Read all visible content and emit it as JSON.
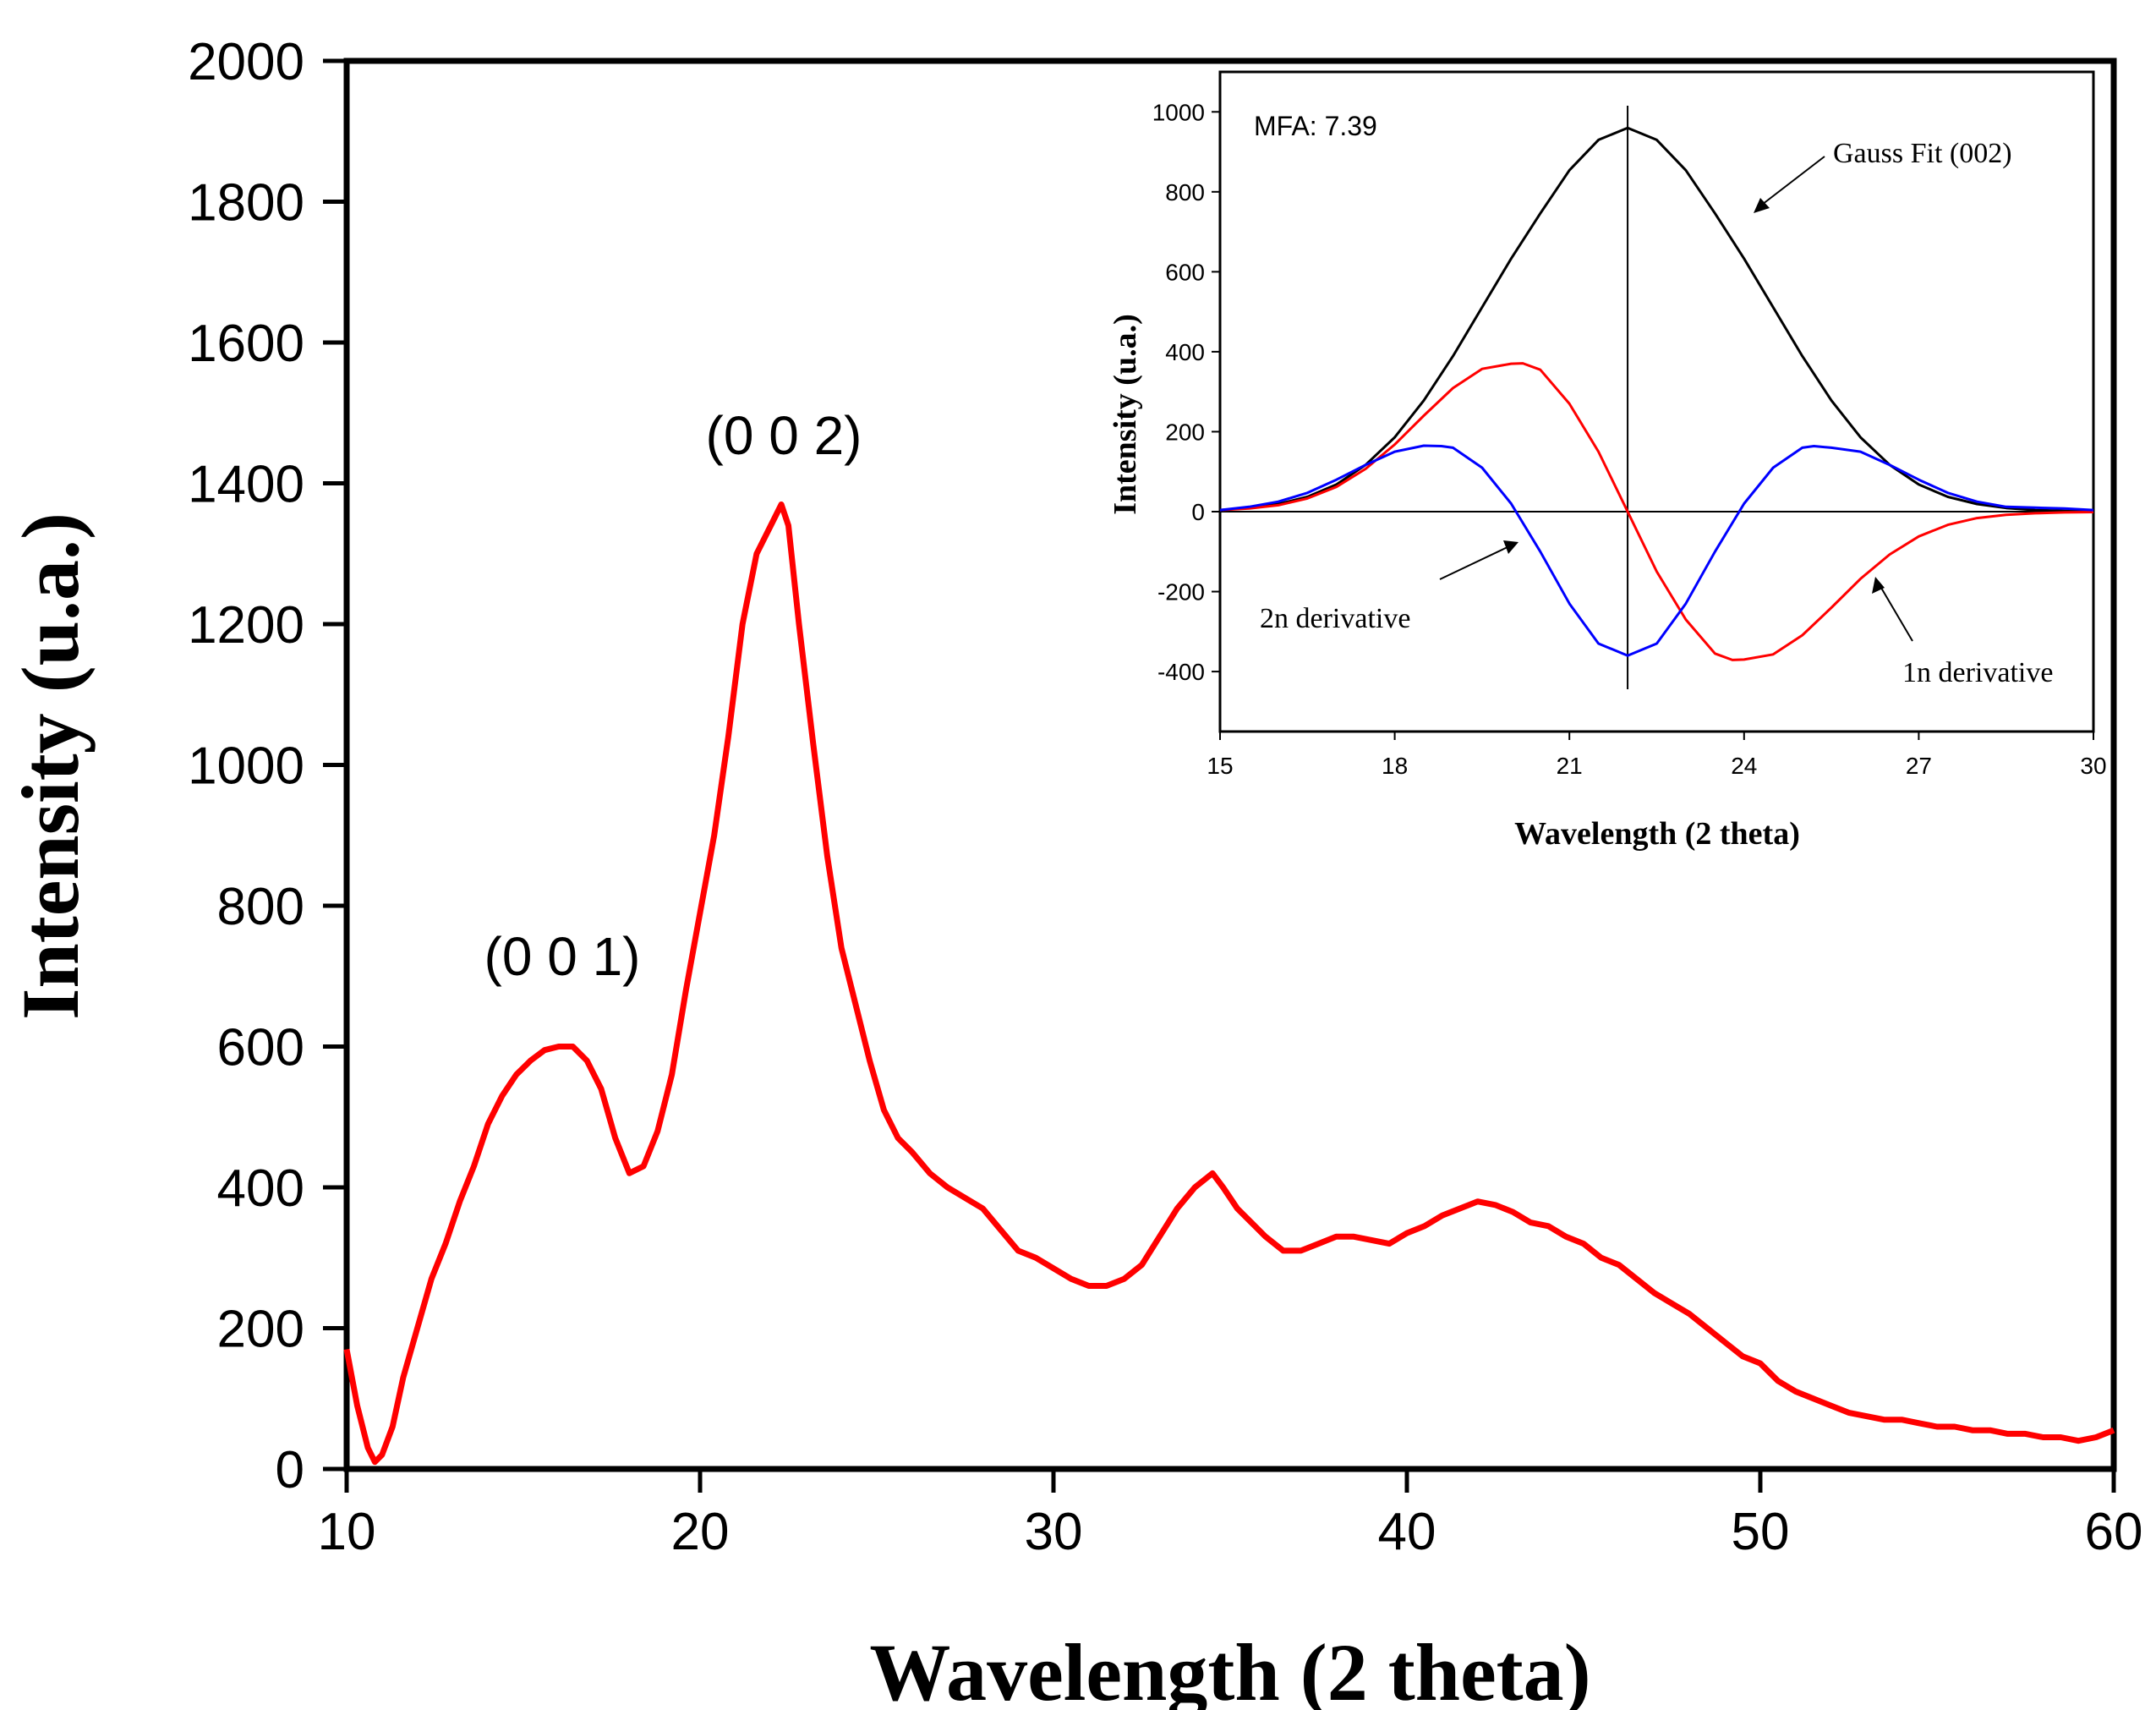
{
  "chart_data": [
    {
      "type": "line",
      "xlabel": "Wavelength (2 theta)",
      "ylabel": "Intensity (u.a.)",
      "xlim": [
        10,
        60
      ],
      "ylim": [
        0,
        2000
      ],
      "xticks": [
        10,
        20,
        30,
        40,
        50,
        60
      ],
      "yticks": [
        0,
        200,
        400,
        600,
        800,
        1000,
        1200,
        1400,
        1600,
        1800,
        2000
      ],
      "grid": false,
      "annotations": [
        {
          "text": "(0 0 1)",
          "x": 16,
          "y": 690
        },
        {
          "text": "(0 0 2)",
          "x": 22.3,
          "y": 1440
        }
      ],
      "series": [
        {
          "color": "#ff0000",
          "x": [
            10,
            10.3,
            10.6,
            10.8,
            11,
            11.3,
            11.6,
            12,
            12.4,
            12.8,
            13.2,
            13.6,
            14,
            14.4,
            14.8,
            15.2,
            15.6,
            16,
            16.4,
            16.8,
            17.2,
            17.6,
            18,
            18.4,
            18.8,
            19.2,
            19.6,
            20,
            20.4,
            20.8,
            21.2,
            21.6,
            22,
            22.3,
            22.5,
            22.8,
            23.2,
            23.6,
            24,
            24.4,
            24.8,
            25.2,
            25.6,
            26,
            26.5,
            27,
            27.5,
            28,
            28.5,
            29,
            29.5,
            30,
            30.5,
            31,
            31.5,
            32,
            32.5,
            33,
            33.5,
            34,
            34.5,
            34.8,
            35.2,
            35.6,
            36,
            36.5,
            37,
            37.5,
            38,
            38.5,
            39,
            39.5,
            40,
            40.5,
            41,
            41.5,
            42,
            42.5,
            43,
            43.5,
            44,
            44.5,
            45,
            45.5,
            46,
            46.5,
            47,
            47.5,
            48,
            48.5,
            49,
            49.5,
            50,
            50.5,
            51,
            51.5,
            52,
            52.5,
            53,
            53.5,
            54,
            54.5,
            55,
            55.5,
            56,
            56.5,
            57,
            57.5,
            58,
            58.5,
            59,
            59.5,
            60
          ],
          "y": [
            170,
            90,
            30,
            10,
            20,
            60,
            130,
            200,
            270,
            320,
            380,
            430,
            490,
            530,
            560,
            580,
            595,
            600,
            600,
            580,
            540,
            470,
            420,
            430,
            480,
            560,
            680,
            790,
            900,
            1040,
            1200,
            1300,
            1340,
            1370,
            1340,
            1200,
            1030,
            870,
            740,
            660,
            580,
            510,
            470,
            450,
            420,
            400,
            385,
            370,
            340,
            310,
            300,
            285,
            270,
            260,
            260,
            270,
            290,
            330,
            370,
            400,
            420,
            400,
            370,
            350,
            330,
            310,
            310,
            320,
            330,
            330,
            325,
            320,
            335,
            345,
            360,
            370,
            380,
            375,
            365,
            350,
            345,
            330,
            320,
            300,
            290,
            270,
            250,
            235,
            220,
            200,
            180,
            160,
            150,
            125,
            110,
            100,
            90,
            80,
            75,
            70,
            70,
            65,
            60,
            60,
            55,
            55,
            50,
            50,
            45,
            45,
            40,
            45,
            55
          ]
        }
      ]
    },
    {
      "type": "line",
      "xlabel": "Wavelength (2 theta)",
      "ylabel": "Intensity (u.a.)",
      "xlim": [
        15,
        30
      ],
      "ylim": [
        -550,
        1100
      ],
      "xticks": [
        15,
        18,
        21,
        24,
        27,
        30
      ],
      "yticks": [
        -400,
        -200,
        0,
        200,
        400,
        600,
        800,
        1000
      ],
      "grid": false,
      "reference_lines": {
        "x": 22,
        "y": 0
      },
      "annotations": [
        {
          "text": "MFA: 7.39"
        },
        {
          "text": "Gauss Fit (002)"
        },
        {
          "text": "2n derivative"
        },
        {
          "text": "1n derivative"
        }
      ],
      "series": [
        {
          "color": "#000000",
          "x": [
            15,
            15.5,
            16,
            16.5,
            17,
            17.5,
            18,
            18.5,
            19,
            19.5,
            20,
            20.5,
            21,
            21.5,
            22,
            22.5,
            23,
            23.5,
            24,
            24.5,
            25,
            25.5,
            26,
            26.5,
            27,
            27.5,
            28,
            28.5,
            29,
            29.5,
            30
          ],
          "y": [
            4,
            9,
            19,
            37,
            68,
            117,
            186,
            278,
            389,
            511,
            633,
            746,
            854,
            930,
            960,
            930,
            854,
            746,
            633,
            511,
            389,
            278,
            186,
            117,
            68,
            37,
            19,
            9,
            4,
            2,
            1
          ]
        },
        {
          "color": "#ff0000",
          "x": [
            15,
            15.5,
            16,
            16.5,
            17,
            17.5,
            18,
            18.5,
            19,
            19.5,
            20,
            20.2,
            20.5,
            21,
            21.5,
            22,
            22.5,
            23,
            23.5,
            23.8,
            24,
            24.5,
            25,
            25.5,
            26,
            26.5,
            27,
            27.5,
            28,
            28.5,
            29,
            29.5,
            30
          ],
          "y": [
            4,
            8,
            16,
            33,
            62,
            107,
            168,
            240,
            309,
            357,
            370,
            371,
            355,
            270,
            150,
            0,
            -150,
            -270,
            -355,
            -371,
            -370,
            -357,
            -309,
            -240,
            -168,
            -107,
            -62,
            -33,
            -16,
            -8,
            -4,
            -2,
            -1
          ]
        },
        {
          "color": "#0000ff",
          "x": [
            15,
            15.5,
            16,
            16.5,
            17,
            17.5,
            18,
            18.5,
            18.8,
            19,
            19.5,
            20,
            20.5,
            21,
            21.5,
            22,
            22.5,
            23,
            23.5,
            24,
            24.5,
            25,
            25.2,
            25.5,
            26,
            26.5,
            27,
            27.5,
            28,
            28.5,
            29,
            29.5,
            30
          ],
          "y": [
            4,
            12,
            25,
            47,
            80,
            117,
            150,
            165,
            164,
            160,
            110,
            20,
            -100,
            -230,
            -330,
            -360,
            -330,
            -230,
            -100,
            20,
            110,
            160,
            164,
            160,
            150,
            117,
            80,
            47,
            25,
            12,
            10,
            8,
            4
          ]
        }
      ]
    }
  ]
}
